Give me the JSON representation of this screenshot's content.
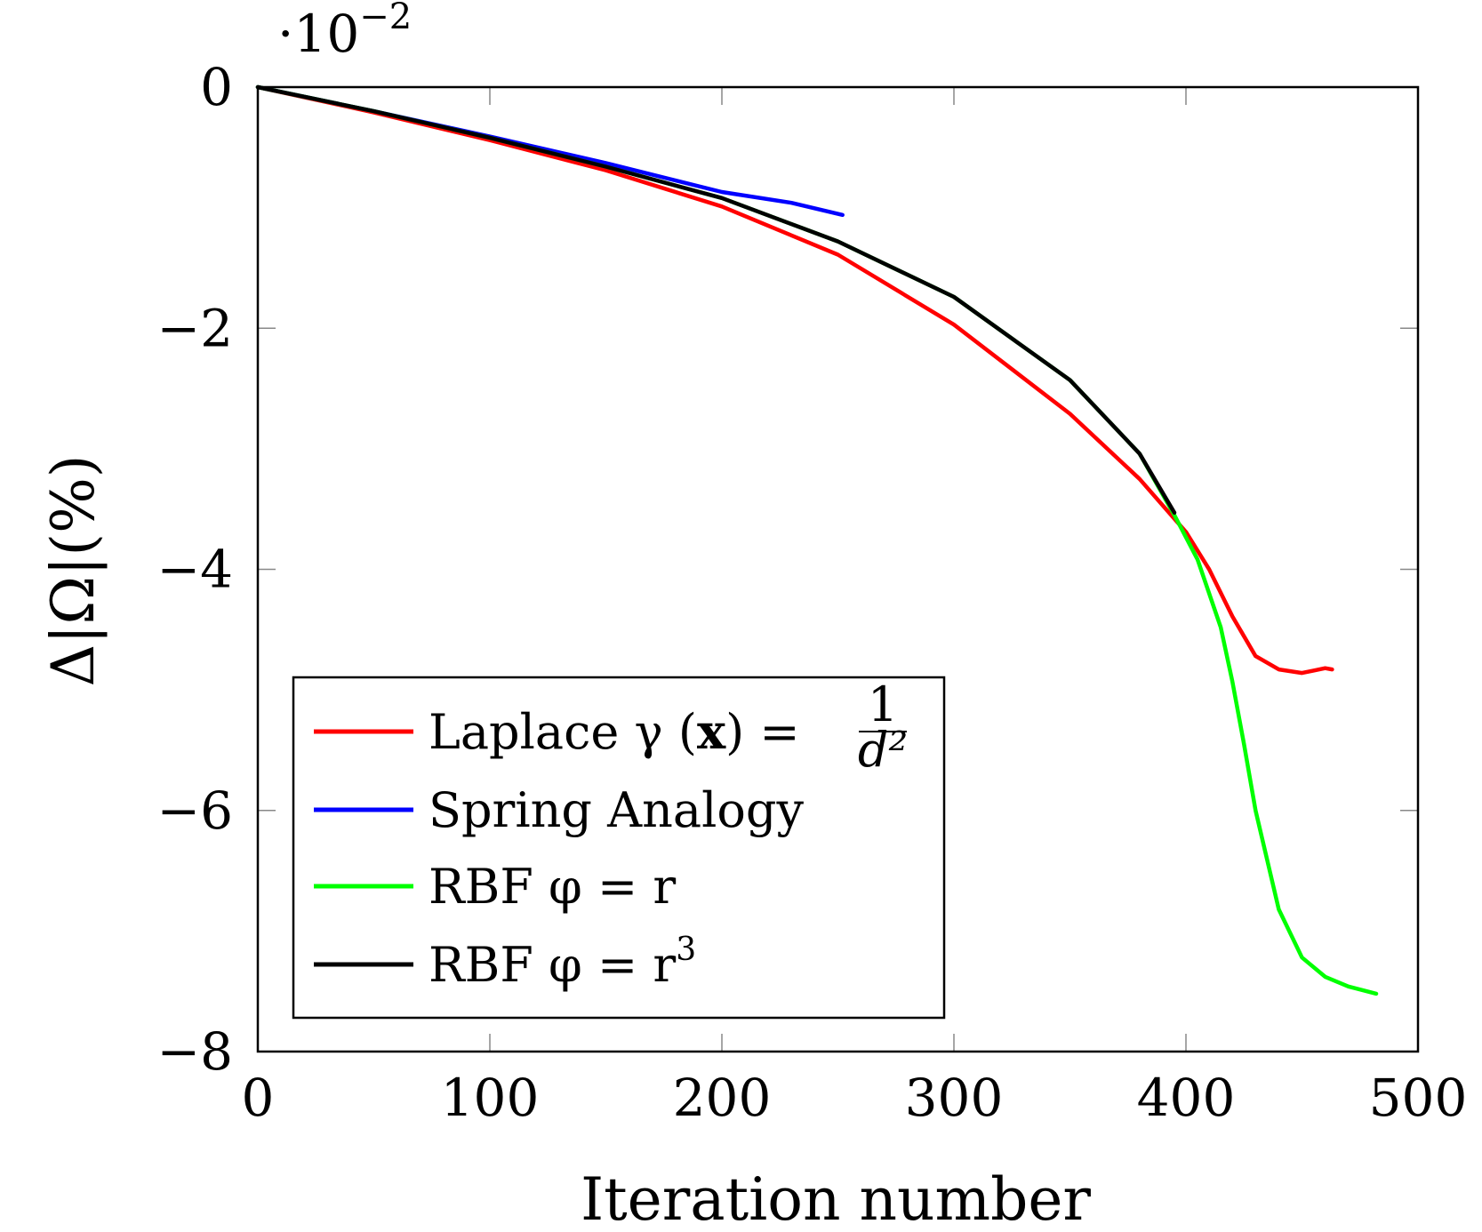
{
  "chart_data": {
    "type": "line",
    "title": "",
    "xlabel": "Iteration number",
    "ylabel": "Δ|Ω|(%)",
    "y_multiplier": "·10",
    "y_multiplier_exp": "−2",
    "xlim": [
      0,
      500
    ],
    "ylim": [
      -8,
      0
    ],
    "x_ticks": [
      0,
      100,
      200,
      300,
      400,
      500
    ],
    "x_tick_labels": [
      "0",
      "100",
      "200",
      "300",
      "400",
      "500"
    ],
    "y_ticks": [
      0,
      -2,
      -4,
      -6,
      -8
    ],
    "y_tick_labels": [
      "0",
      "−2",
      "−4",
      "−6",
      "−8"
    ],
    "grid": false,
    "legend_position": "bottom-left",
    "series": [
      {
        "name": "Laplace γ (x) = 1/d²",
        "legend_text": "Laplace γ (",
        "legend_bold": "x",
        "legend_after": ") =",
        "legend_frac_num": "1",
        "legend_frac_den": "d²",
        "color": "#ff0000",
        "x": [
          0,
          50,
          100,
          150,
          200,
          250,
          300,
          350,
          380,
          400,
          410,
          420,
          430,
          440,
          450,
          455,
          460,
          463
        ],
        "y": [
          0,
          -0.21,
          -0.44,
          -0.69,
          -0.99,
          -1.39,
          -1.97,
          -2.71,
          -3.25,
          -3.69,
          -4.0,
          -4.39,
          -4.72,
          -4.83,
          -4.86,
          -4.84,
          -4.82,
          -4.83
        ]
      },
      {
        "name": "Spring Analogy",
        "legend_text": "Spring Analogy",
        "color": "#0000ff",
        "x": [
          0,
          50,
          100,
          150,
          200,
          230,
          252
        ],
        "y": [
          0,
          -0.2,
          -0.41,
          -0.63,
          -0.87,
          -0.96,
          -1.06
        ]
      },
      {
        "name": "RBF φ = r",
        "legend_text": "RBF φ = r",
        "color": "#00ff00",
        "x": [
          0,
          50,
          100,
          150,
          200,
          250,
          300,
          350,
          380,
          395,
          405,
          415,
          420,
          425,
          430,
          440,
          450,
          460,
          470,
          482
        ],
        "y": [
          0,
          -0.2,
          -0.42,
          -0.66,
          -0.92,
          -1.28,
          -1.74,
          -2.43,
          -3.04,
          -3.55,
          -3.92,
          -4.48,
          -4.93,
          -5.45,
          -6.0,
          -6.82,
          -7.22,
          -7.38,
          -7.46,
          -7.52
        ]
      },
      {
        "name": "RBF φ = r³",
        "legend_text": "RBF φ = r",
        "legend_sup": "3",
        "color": "#000000",
        "x": [
          0,
          50,
          100,
          150,
          200,
          250,
          300,
          350,
          380,
          395
        ],
        "y": [
          0,
          -0.2,
          -0.42,
          -0.66,
          -0.92,
          -1.28,
          -1.74,
          -2.43,
          -3.04,
          -3.53
        ]
      }
    ]
  }
}
